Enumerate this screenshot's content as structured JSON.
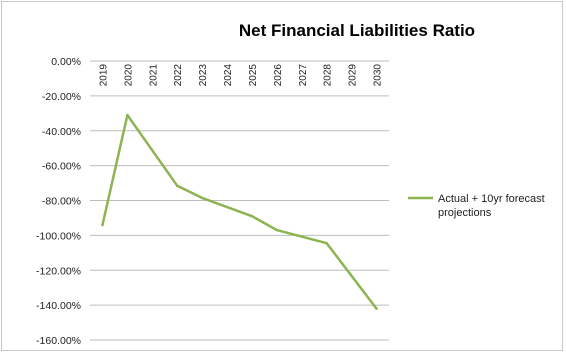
{
  "chart_data": {
    "type": "line",
    "title": "Net Financial Liabilities Ratio",
    "xlabel": "",
    "ylabel": "",
    "x": [
      "2019",
      "2020",
      "2021",
      "2022",
      "2023",
      "2024",
      "2025",
      "2026",
      "2027",
      "2028",
      "2029",
      "2030"
    ],
    "y_ticks": [
      "0.00%",
      "-20.00%",
      "-40.00%",
      "-60.00%",
      "-80.00%",
      "-100.00%",
      "-120.00%",
      "-140.00%",
      "-160.00%"
    ],
    "ylim": [
      -160,
      0
    ],
    "y_unit": "%",
    "grid": true,
    "legend_position": "right",
    "series": [
      {
        "name": "Actual + 10yr forecast projections",
        "legend_lines": [
          "Actual + 10yr forecast",
          "projections"
        ],
        "color": "#8db452",
        "values": [
          -94,
          -31,
          null,
          -71.5,
          -78.5,
          null,
          -89,
          -97,
          null,
          -104.5,
          null,
          -142
        ]
      }
    ]
  }
}
